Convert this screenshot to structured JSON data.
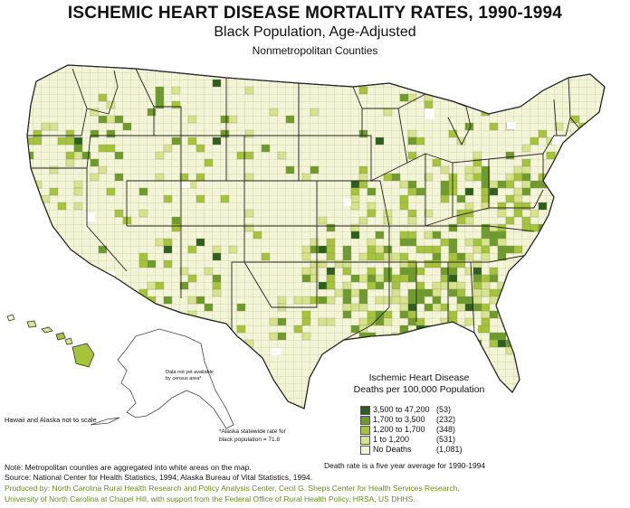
{
  "title": "ISCHEMIC HEART DISEASE MORTALITY RATES, 1990-1994",
  "subtitle": "Black Population, Age-Adjusted",
  "subsubtitle": "Nonmetropolitan Counties",
  "legend": {
    "title_line1": "Ischemic Heart Disease",
    "title_line2": "Deaths per 100,000 Population",
    "items": [
      {
        "label": "3,500 to 47,200",
        "count": "(53)",
        "color": "#2f5f1c"
      },
      {
        "label": "1,700 to 3,500",
        "count": "(232)",
        "color": "#6e9c2a"
      },
      {
        "label": "1,200 to 1,700",
        "count": "(348)",
        "color": "#a5c43a"
      },
      {
        "label": "1 to 1,200",
        "count": "(531)",
        "color": "#d8e48c"
      },
      {
        "label": "No Deaths",
        "count": "(1,081)",
        "color": "#f4f4d6"
      }
    ],
    "footnote": "Death rate is a five year average for 1990-1994"
  },
  "alaska_note_1": "Data not yet available",
  "alaska_note_2": "by census area*",
  "alaska_rate_1": "*Alaska statewide rate for",
  "alaska_rate_2": "black population = 71.8",
  "hawaii_alaska_scale": "Hawaii and Alaska not to scale",
  "notes": {
    "metro": "Note: Metropolitan counties are aggregated into white areas on the map.",
    "source": "Source: National Center for Health Statistics, 1994; Alaska Bureau of Vital Statistics, 1994.",
    "produced_1": "Produced by: North Carolina Rural Health Research and Policy Analysis Center, Cecil G. Sheps Center for Health Services Research,",
    "produced_2": "University of North Carolina at Chapel Hill, with support from the Federal Office of Rural Health Policy, HRSA, US DHHS."
  }
}
